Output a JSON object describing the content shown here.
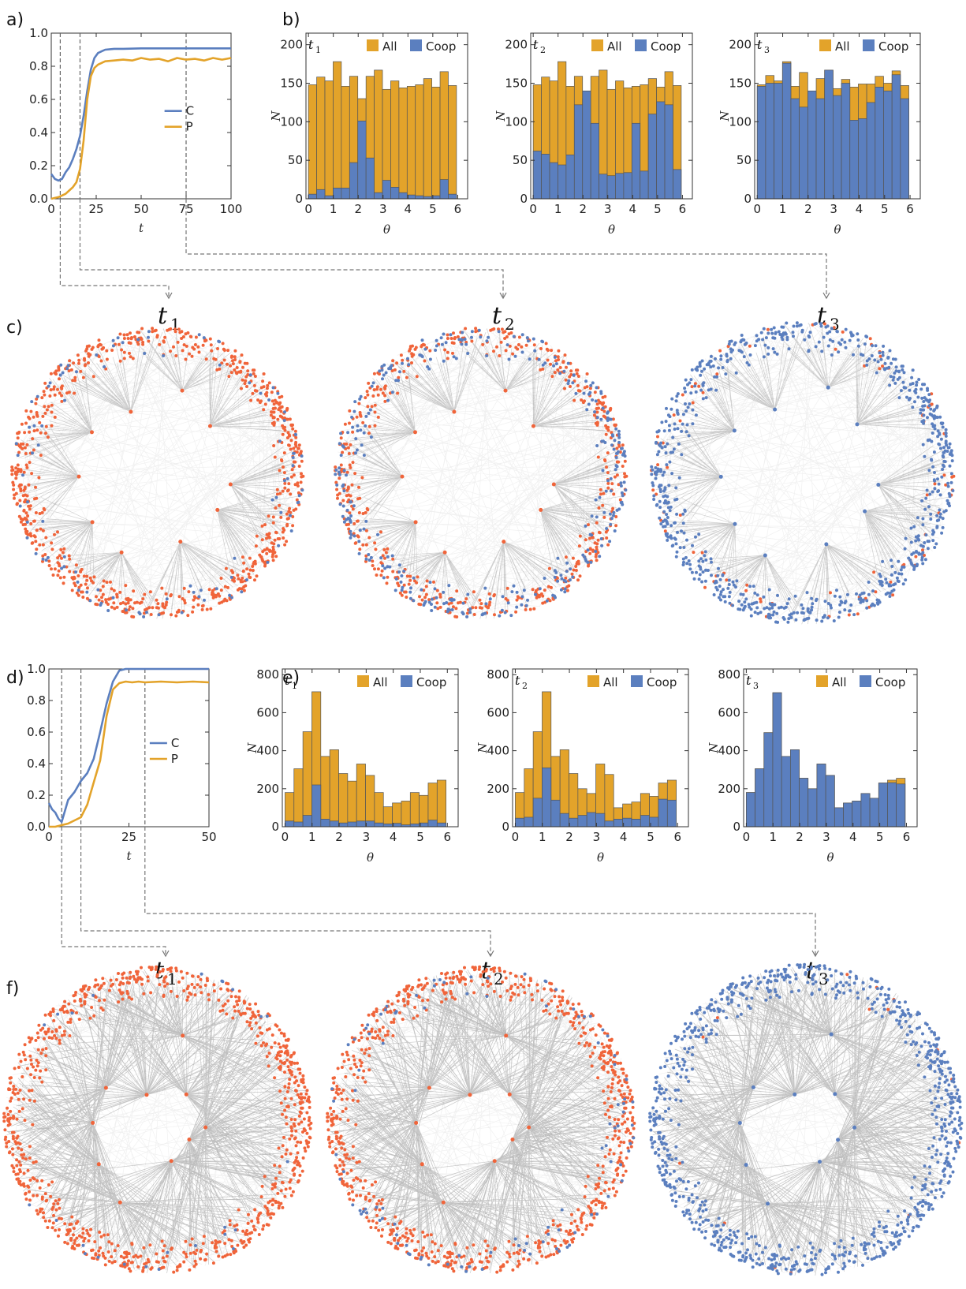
{
  "colors": {
    "cooperation": "#5b7fbf",
    "payoff": "#e3a32a",
    "all_bar": "#e3a32a",
    "coop_bar": "#5b7fbf",
    "node_defect": "#f0643a",
    "node_coop": "#5b7fbf",
    "edges": "#000000"
  },
  "panel_labels": {
    "a": "a)",
    "b": "b)",
    "c": "c)",
    "d": "d)",
    "e": "e)",
    "f": "f)"
  },
  "snapshot_labels": [
    {
      "main": "t",
      "sub": "1"
    },
    {
      "main": "t",
      "sub": "2"
    },
    {
      "main": "t",
      "sub": "3"
    }
  ],
  "chart_data": [
    {
      "id": "a",
      "type": "line",
      "xlabel": "t",
      "ylabel": "",
      "xlim": [
        0,
        100
      ],
      "ylim": [
        0,
        1.0
      ],
      "xticks": [
        "0",
        "25",
        "50",
        "75",
        "100"
      ],
      "yticks": [
        "0.0",
        "0.2",
        "0.4",
        "0.6",
        "0.8",
        "1.0"
      ],
      "legend": [
        "C",
        "P"
      ],
      "legend_position": "right",
      "snapshot_times": [
        5,
        16,
        75
      ],
      "series": [
        {
          "name": "C",
          "x": [
            0,
            2,
            4,
            6,
            8,
            10,
            12,
            14,
            16,
            18,
            20,
            22,
            24,
            26,
            28,
            30,
            35,
            40,
            50,
            60,
            70,
            80,
            90,
            100
          ],
          "y": [
            0.15,
            0.12,
            0.11,
            0.12,
            0.16,
            0.19,
            0.24,
            0.3,
            0.38,
            0.5,
            0.65,
            0.78,
            0.85,
            0.88,
            0.89,
            0.9,
            0.905,
            0.905,
            0.908,
            0.908,
            0.908,
            0.908,
            0.908,
            0.908
          ]
        },
        {
          "name": "P",
          "x": [
            0,
            2,
            4,
            6,
            8,
            10,
            12,
            14,
            16,
            18,
            20,
            22,
            24,
            26,
            28,
            30,
            35,
            40,
            45,
            50,
            55,
            60,
            65,
            70,
            75,
            80,
            85,
            90,
            95,
            100
          ],
          "y": [
            0.0,
            0.005,
            0.01,
            0.02,
            0.03,
            0.05,
            0.07,
            0.1,
            0.18,
            0.35,
            0.6,
            0.74,
            0.79,
            0.81,
            0.82,
            0.83,
            0.835,
            0.84,
            0.835,
            0.85,
            0.84,
            0.845,
            0.83,
            0.85,
            0.84,
            0.845,
            0.835,
            0.85,
            0.84,
            0.85
          ]
        }
      ]
    },
    {
      "id": "b1",
      "type": "bar",
      "stacked": false,
      "label": {
        "main": "t",
        "sub": "1"
      },
      "xlabel": "θ",
      "ylabel": "N",
      "xlim": [
        -0.1,
        6.4
      ],
      "ylim": [
        0,
        215
      ],
      "xticks": [
        "0",
        "1",
        "2",
        "3",
        "4",
        "5",
        "6"
      ],
      "yticks": [
        "0",
        "50",
        "100",
        "150",
        "200"
      ],
      "legend": [
        "All",
        "Coop"
      ],
      "legend_position": "top-right",
      "bin_width": 0.3307,
      "series": [
        {
          "name": "All",
          "values": [
            148,
            158,
            153,
            178,
            146,
            159,
            130,
            159,
            167,
            142,
            153,
            144,
            146,
            148,
            156,
            145,
            165,
            147
          ]
        },
        {
          "name": "Coop",
          "values": [
            6,
            12,
            4,
            14,
            14,
            47,
            101,
            53,
            8,
            24,
            15,
            8,
            5,
            4,
            3,
            4,
            25,
            6
          ]
        }
      ]
    },
    {
      "id": "b2",
      "type": "bar",
      "stacked": false,
      "label": {
        "main": "t",
        "sub": "2"
      },
      "xlabel": "θ",
      "ylabel": "N",
      "xlim": [
        -0.1,
        6.4
      ],
      "ylim": [
        0,
        215
      ],
      "xticks": [
        "0",
        "1",
        "2",
        "3",
        "4",
        "5",
        "6"
      ],
      "yticks": [
        "0",
        "50",
        "100",
        "150",
        "200"
      ],
      "legend": [
        "All",
        "Coop"
      ],
      "legend_position": "top-right",
      "bin_width": 0.3307,
      "series": [
        {
          "name": "All",
          "values": [
            148,
            158,
            153,
            178,
            146,
            159,
            130,
            159,
            167,
            142,
            153,
            144,
            146,
            148,
            156,
            145,
            165,
            147
          ]
        },
        {
          "name": "Coop",
          "values": [
            62,
            58,
            47,
            44,
            57,
            122,
            140,
            98,
            32,
            30,
            33,
            34,
            98,
            36,
            110,
            126,
            122,
            38
          ]
        }
      ]
    },
    {
      "id": "b3",
      "type": "bar",
      "stacked": false,
      "label": {
        "main": "t",
        "sub": "3"
      },
      "xlabel": "θ",
      "ylabel": "N",
      "xlim": [
        -0.1,
        6.4
      ],
      "ylim": [
        0,
        215
      ],
      "xticks": [
        "0",
        "1",
        "2",
        "3",
        "4",
        "5",
        "6"
      ],
      "yticks": [
        "0",
        "50",
        "100",
        "150",
        "200"
      ],
      "legend": [
        "All",
        "Coop"
      ],
      "legend_position": "top-right",
      "bin_width": 0.3307,
      "series": [
        {
          "name": "All",
          "values": [
            148,
            160,
            153,
            178,
            146,
            164,
            132,
            156,
            167,
            143,
            155,
            145,
            149,
            149,
            159,
            150,
            166,
            147
          ]
        },
        {
          "name": "Coop",
          "values": [
            146,
            150,
            150,
            176,
            130,
            119,
            140,
            130,
            167,
            134,
            150,
            102,
            104,
            125,
            145,
            140,
            161,
            130
          ]
        }
      ]
    },
    {
      "id": "d",
      "type": "line",
      "xlabel": "t",
      "ylabel": "",
      "xlim": [
        0,
        50
      ],
      "ylim": [
        0,
        1.0
      ],
      "xticks": [
        "0",
        "25",
        "50"
      ],
      "yticks": [
        "0.0",
        "0.2",
        "0.4",
        "0.6",
        "0.8",
        "1.0"
      ],
      "legend": [
        "C",
        "P"
      ],
      "legend_position": "right",
      "snapshot_times": [
        4,
        10,
        30
      ],
      "series": [
        {
          "name": "C",
          "x": [
            0,
            1,
            2,
            3,
            4,
            5,
            6,
            8,
            10,
            12,
            14,
            16,
            18,
            20,
            22,
            24,
            26,
            30,
            40,
            50
          ],
          "y": [
            0.15,
            0.11,
            0.09,
            0.05,
            0.03,
            0.1,
            0.17,
            0.22,
            0.29,
            0.34,
            0.43,
            0.6,
            0.78,
            0.92,
            0.99,
            1.0,
            1.0,
            1.0,
            1.0,
            1.0
          ]
        },
        {
          "name": "P",
          "x": [
            0,
            2,
            4,
            6,
            8,
            10,
            12,
            14,
            16,
            18,
            20,
            22,
            24,
            26,
            28,
            30,
            35,
            40,
            45,
            50
          ],
          "y": [
            0.0,
            0.0,
            0.01,
            0.02,
            0.04,
            0.06,
            0.14,
            0.28,
            0.42,
            0.7,
            0.87,
            0.91,
            0.92,
            0.915,
            0.92,
            0.915,
            0.92,
            0.915,
            0.92,
            0.915
          ]
        }
      ]
    },
    {
      "id": "e1",
      "type": "bar",
      "stacked": false,
      "label": {
        "main": "t",
        "sub": "1"
      },
      "xlabel": "θ",
      "ylabel": "N",
      "xlim": [
        -0.1,
        6.4
      ],
      "ylim": [
        0,
        830
      ],
      "xticks": [
        "0",
        "1",
        "2",
        "3",
        "4",
        "5",
        "6"
      ],
      "yticks": [
        "0",
        "200",
        "400",
        "600",
        "800"
      ],
      "legend": [
        "All",
        "Coop"
      ],
      "legend_position": "top-right",
      "bin_width": 0.3307,
      "series": [
        {
          "name": "All",
          "values": [
            180,
            305,
            500,
            710,
            370,
            405,
            280,
            240,
            330,
            270,
            180,
            105,
            125,
            135,
            180,
            165,
            230,
            245
          ]
        },
        {
          "name": "Coop",
          "values": [
            30,
            25,
            60,
            220,
            40,
            30,
            20,
            25,
            30,
            30,
            20,
            15,
            18,
            10,
            15,
            20,
            35,
            20
          ]
        }
      ]
    },
    {
      "id": "e2",
      "type": "bar",
      "stacked": false,
      "label": {
        "main": "t",
        "sub": "2"
      },
      "xlabel": "θ",
      "ylabel": "N",
      "xlim": [
        -0.1,
        6.4
      ],
      "ylim": [
        0,
        830
      ],
      "xticks": [
        "0",
        "1",
        "2",
        "3",
        "4",
        "5",
        "6"
      ],
      "yticks": [
        "0",
        "200",
        "400",
        "600",
        "800"
      ],
      "legend": [
        "All",
        "Coop"
      ],
      "legend_position": "top-right",
      "bin_width": 0.3307,
      "series": [
        {
          "name": "All",
          "values": [
            180,
            305,
            500,
            710,
            370,
            405,
            280,
            200,
            175,
            330,
            275,
            100,
            120,
            130,
            175,
            160,
            230,
            245
          ]
        },
        {
          "name": "Coop",
          "values": [
            45,
            50,
            150,
            310,
            140,
            70,
            45,
            60,
            75,
            70,
            30,
            40,
            45,
            40,
            60,
            50,
            145,
            140
          ]
        }
      ]
    },
    {
      "id": "e3",
      "type": "bar",
      "stacked": false,
      "label": {
        "main": "t",
        "sub": "3"
      },
      "xlabel": "θ",
      "ylabel": "N",
      "xlim": [
        -0.1,
        6.4
      ],
      "ylim": [
        0,
        830
      ],
      "xticks": [
        "0",
        "1",
        "2",
        "3",
        "4",
        "5",
        "6"
      ],
      "yticks": [
        "0",
        "200",
        "400",
        "600",
        "800"
      ],
      "legend": [
        "All",
        "Coop"
      ],
      "legend_position": "top-right",
      "bin_width": 0.3307,
      "series": [
        {
          "name": "All",
          "values": [
            180,
            305,
            495,
            705,
            370,
            405,
            255,
            200,
            330,
            270,
            100,
            125,
            135,
            175,
            150,
            230,
            245,
            255
          ]
        },
        {
          "name": "Coop",
          "values": [
            180,
            305,
            495,
            705,
            370,
            405,
            255,
            200,
            330,
            270,
            100,
            125,
            135,
            175,
            150,
            230,
            232,
            225
          ]
        }
      ]
    }
  ],
  "network_snapshots": [
    {
      "id": "c1",
      "coop_fraction": 0.12
    },
    {
      "id": "c2",
      "coop_fraction": 0.38
    },
    {
      "id": "c3",
      "coop_fraction": 0.9
    },
    {
      "id": "f1",
      "coop_fraction": 0.04
    },
    {
      "id": "f2",
      "coop_fraction": 0.12
    },
    {
      "id": "f3",
      "coop_fraction": 0.97
    }
  ]
}
